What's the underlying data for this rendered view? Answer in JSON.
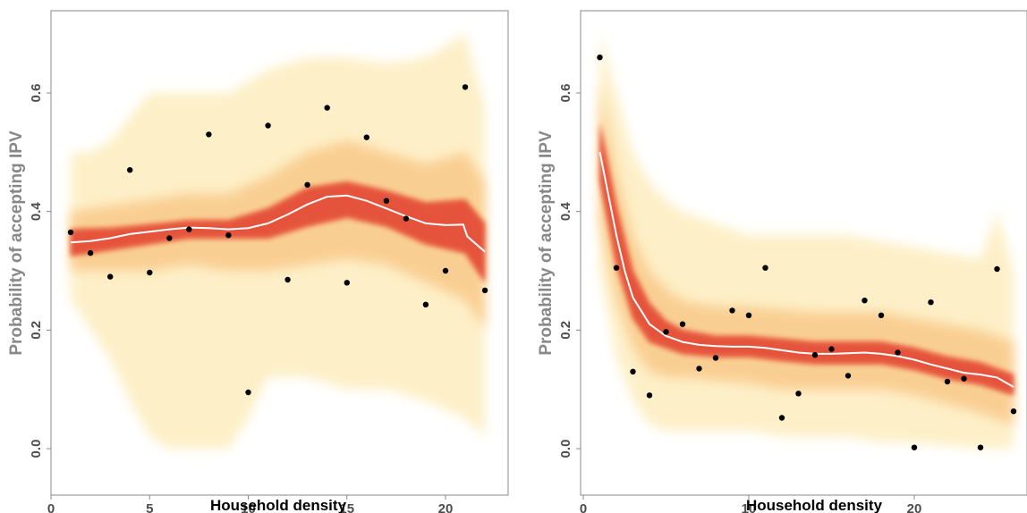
{
  "colors": {
    "band_core": "#d8242a",
    "band_mid": "#ee6a3a",
    "band_outer": "#f9c98a",
    "band_faint": "#fdeec2",
    "median_line": "#ffffff",
    "points": "#000000",
    "axis": "#888888"
  },
  "chart_data": [
    {
      "type": "scatter",
      "title": "",
      "xlabel": "Household density",
      "ylabel": "Probability of accepting IPV",
      "xlim": [
        0,
        22
      ],
      "ylim": [
        0,
        0.7
      ],
      "xticks": [
        0,
        5,
        10,
        15,
        20
      ],
      "yticks": [
        0.0,
        0.2,
        0.4,
        0.6
      ],
      "xtick_labels": [
        "0",
        "5",
        "10",
        "15",
        "20"
      ],
      "ytick_labels": [
        "0.0",
        "0.2",
        "0.4",
        "0.6"
      ],
      "grid": false,
      "points": [
        {
          "x": 1,
          "y": 0.365
        },
        {
          "x": 2,
          "y": 0.33
        },
        {
          "x": 3,
          "y": 0.29
        },
        {
          "x": 4,
          "y": 0.47
        },
        {
          "x": 5,
          "y": 0.297
        },
        {
          "x": 6,
          "y": 0.355
        },
        {
          "x": 7,
          "y": 0.37
        },
        {
          "x": 8,
          "y": 0.53
        },
        {
          "x": 9,
          "y": 0.36
        },
        {
          "x": 10,
          "y": 0.095
        },
        {
          "x": 11,
          "y": 0.545
        },
        {
          "x": 12,
          "y": 0.285
        },
        {
          "x": 13,
          "y": 0.445
        },
        {
          "x": 14,
          "y": 0.575
        },
        {
          "x": 15,
          "y": 0.28
        },
        {
          "x": 16,
          "y": 0.525
        },
        {
          "x": 17,
          "y": 0.418
        },
        {
          "x": 18,
          "y": 0.388
        },
        {
          "x": 19,
          "y": 0.243
        },
        {
          "x": 20,
          "y": 0.3
        },
        {
          "x": 21,
          "y": 0.61
        },
        {
          "x": 22,
          "y": 0.267
        }
      ],
      "median_line": {
        "x": [
          1,
          2,
          3,
          4,
          5,
          6,
          7,
          8,
          9,
          10,
          11,
          12,
          13,
          14,
          15,
          16,
          17,
          18,
          19,
          20,
          20.9,
          21.1,
          22
        ],
        "y": [
          0.348,
          0.35,
          0.355,
          0.362,
          0.366,
          0.37,
          0.373,
          0.372,
          0.37,
          0.372,
          0.38,
          0.395,
          0.412,
          0.425,
          0.427,
          0.418,
          0.405,
          0.392,
          0.38,
          0.377,
          0.378,
          0.358,
          0.332
        ]
      },
      "band_inner": {
        "x": [
          1,
          3,
          5,
          7,
          9,
          11,
          13,
          15,
          17,
          19,
          21,
          22
        ],
        "lo": [
          0.325,
          0.335,
          0.345,
          0.355,
          0.355,
          0.355,
          0.375,
          0.39,
          0.375,
          0.345,
          0.33,
          0.28
        ],
        "hi": [
          0.37,
          0.372,
          0.378,
          0.385,
          0.385,
          0.405,
          0.44,
          0.45,
          0.435,
          0.415,
          0.42,
          0.38
        ]
      },
      "band_mid": {
        "x": [
          1,
          3,
          5,
          7,
          9,
          11,
          13,
          15,
          17,
          19,
          21,
          22
        ],
        "lo": [
          0.3,
          0.3,
          0.3,
          0.31,
          0.3,
          0.3,
          0.31,
          0.32,
          0.31,
          0.28,
          0.25,
          0.2
        ],
        "hi": [
          0.4,
          0.41,
          0.42,
          0.43,
          0.43,
          0.46,
          0.5,
          0.52,
          0.5,
          0.48,
          0.5,
          0.45
        ]
      },
      "band_outer": {
        "x": [
          1,
          2,
          3,
          4,
          5,
          6,
          7,
          8,
          9,
          10,
          11,
          13,
          15,
          17,
          19,
          21,
          22
        ],
        "lo": [
          0.25,
          0.2,
          0.15,
          0.08,
          0.02,
          0.0,
          0.0,
          0.0,
          0.0,
          0.05,
          0.12,
          0.12,
          0.1,
          0.1,
          0.08,
          0.05,
          0.02
        ],
        "hi": [
          0.5,
          0.5,
          0.52,
          0.56,
          0.6,
          0.6,
          0.6,
          0.6,
          0.6,
          0.62,
          0.64,
          0.66,
          0.66,
          0.65,
          0.66,
          0.7,
          0.58
        ]
      }
    },
    {
      "type": "scatter",
      "title": "",
      "xlabel": "Household density",
      "ylabel": "Probability of accepting IPV",
      "xlim": [
        0,
        26
      ],
      "ylim": [
        0,
        0.7
      ],
      "xticks": [
        0,
        10,
        20
      ],
      "yticks": [
        0.0,
        0.2,
        0.4,
        0.6
      ],
      "xtick_labels": [
        "0",
        "10",
        "20"
      ],
      "ytick_labels": [
        "0.0",
        "0.2",
        "0.4",
        "0.6"
      ],
      "grid": false,
      "points": [
        {
          "x": 1,
          "y": 0.66
        },
        {
          "x": 2,
          "y": 0.305
        },
        {
          "x": 3,
          "y": 0.13
        },
        {
          "x": 4,
          "y": 0.09
        },
        {
          "x": 5,
          "y": 0.197
        },
        {
          "x": 6,
          "y": 0.21
        },
        {
          "x": 7,
          "y": 0.135
        },
        {
          "x": 8,
          "y": 0.153
        },
        {
          "x": 9,
          "y": 0.233
        },
        {
          "x": 10,
          "y": 0.225
        },
        {
          "x": 11,
          "y": 0.305
        },
        {
          "x": 12,
          "y": 0.052
        },
        {
          "x": 13,
          "y": 0.093
        },
        {
          "x": 14,
          "y": 0.158
        },
        {
          "x": 15,
          "y": 0.168
        },
        {
          "x": 16,
          "y": 0.123
        },
        {
          "x": 17,
          "y": 0.25
        },
        {
          "x": 18,
          "y": 0.225
        },
        {
          "x": 19,
          "y": 0.162
        },
        {
          "x": 20,
          "y": 0.002
        },
        {
          "x": 21,
          "y": 0.247
        },
        {
          "x": 22,
          "y": 0.113
        },
        {
          "x": 23,
          "y": 0.118
        },
        {
          "x": 24,
          "y": 0.002
        },
        {
          "x": 25,
          "y": 0.303
        },
        {
          "x": 26,
          "y": 0.063
        }
      ],
      "median_line": {
        "x": [
          1,
          1.5,
          2,
          2.5,
          3,
          4,
          5,
          6,
          7,
          8,
          9,
          10,
          11,
          12,
          13,
          14,
          15,
          16,
          17,
          18,
          19,
          20,
          21,
          22,
          23,
          24,
          25,
          26
        ],
        "y": [
          0.5,
          0.43,
          0.36,
          0.3,
          0.255,
          0.21,
          0.19,
          0.18,
          0.175,
          0.173,
          0.172,
          0.172,
          0.17,
          0.166,
          0.162,
          0.16,
          0.16,
          0.161,
          0.162,
          0.16,
          0.156,
          0.15,
          0.142,
          0.135,
          0.128,
          0.125,
          0.12,
          0.104
        ]
      },
      "band_inner": {
        "x": [
          1,
          2,
          3,
          4,
          5,
          6,
          8,
          10,
          12,
          14,
          16,
          18,
          20,
          22,
          24,
          26
        ],
        "lo": [
          0.45,
          0.31,
          0.22,
          0.18,
          0.17,
          0.16,
          0.155,
          0.155,
          0.148,
          0.143,
          0.143,
          0.143,
          0.133,
          0.118,
          0.108,
          0.09
        ],
        "hi": [
          0.55,
          0.41,
          0.3,
          0.245,
          0.215,
          0.2,
          0.19,
          0.19,
          0.185,
          0.18,
          0.18,
          0.18,
          0.17,
          0.155,
          0.145,
          0.125
        ]
      },
      "band_mid": {
        "x": [
          1,
          2,
          3,
          4,
          5,
          6,
          8,
          10,
          12,
          14,
          16,
          18,
          20,
          22,
          24,
          26
        ],
        "lo": [
          0.38,
          0.25,
          0.17,
          0.13,
          0.12,
          0.12,
          0.115,
          0.11,
          0.1,
          0.1,
          0.1,
          0.1,
          0.09,
          0.075,
          0.06,
          0.04
        ],
        "hi": [
          0.62,
          0.47,
          0.36,
          0.3,
          0.27,
          0.25,
          0.24,
          0.24,
          0.235,
          0.23,
          0.23,
          0.23,
          0.22,
          0.21,
          0.2,
          0.18
        ]
      },
      "band_outer": {
        "x": [
          1,
          2,
          3,
          4,
          5,
          6,
          8,
          10,
          12,
          14,
          16,
          18,
          20,
          22,
          24,
          25,
          26
        ],
        "lo": [
          0.3,
          0.15,
          0.08,
          0.04,
          0.03,
          0.03,
          0.03,
          0.03,
          0.02,
          0.02,
          0.02,
          0.01,
          0.01,
          0.005,
          0.0,
          0.0,
          0.0
        ],
        "hi": [
          0.7,
          0.6,
          0.5,
          0.45,
          0.42,
          0.4,
          0.38,
          0.36,
          0.36,
          0.36,
          0.36,
          0.35,
          0.34,
          0.33,
          0.32,
          0.4,
          0.3
        ]
      }
    }
  ]
}
